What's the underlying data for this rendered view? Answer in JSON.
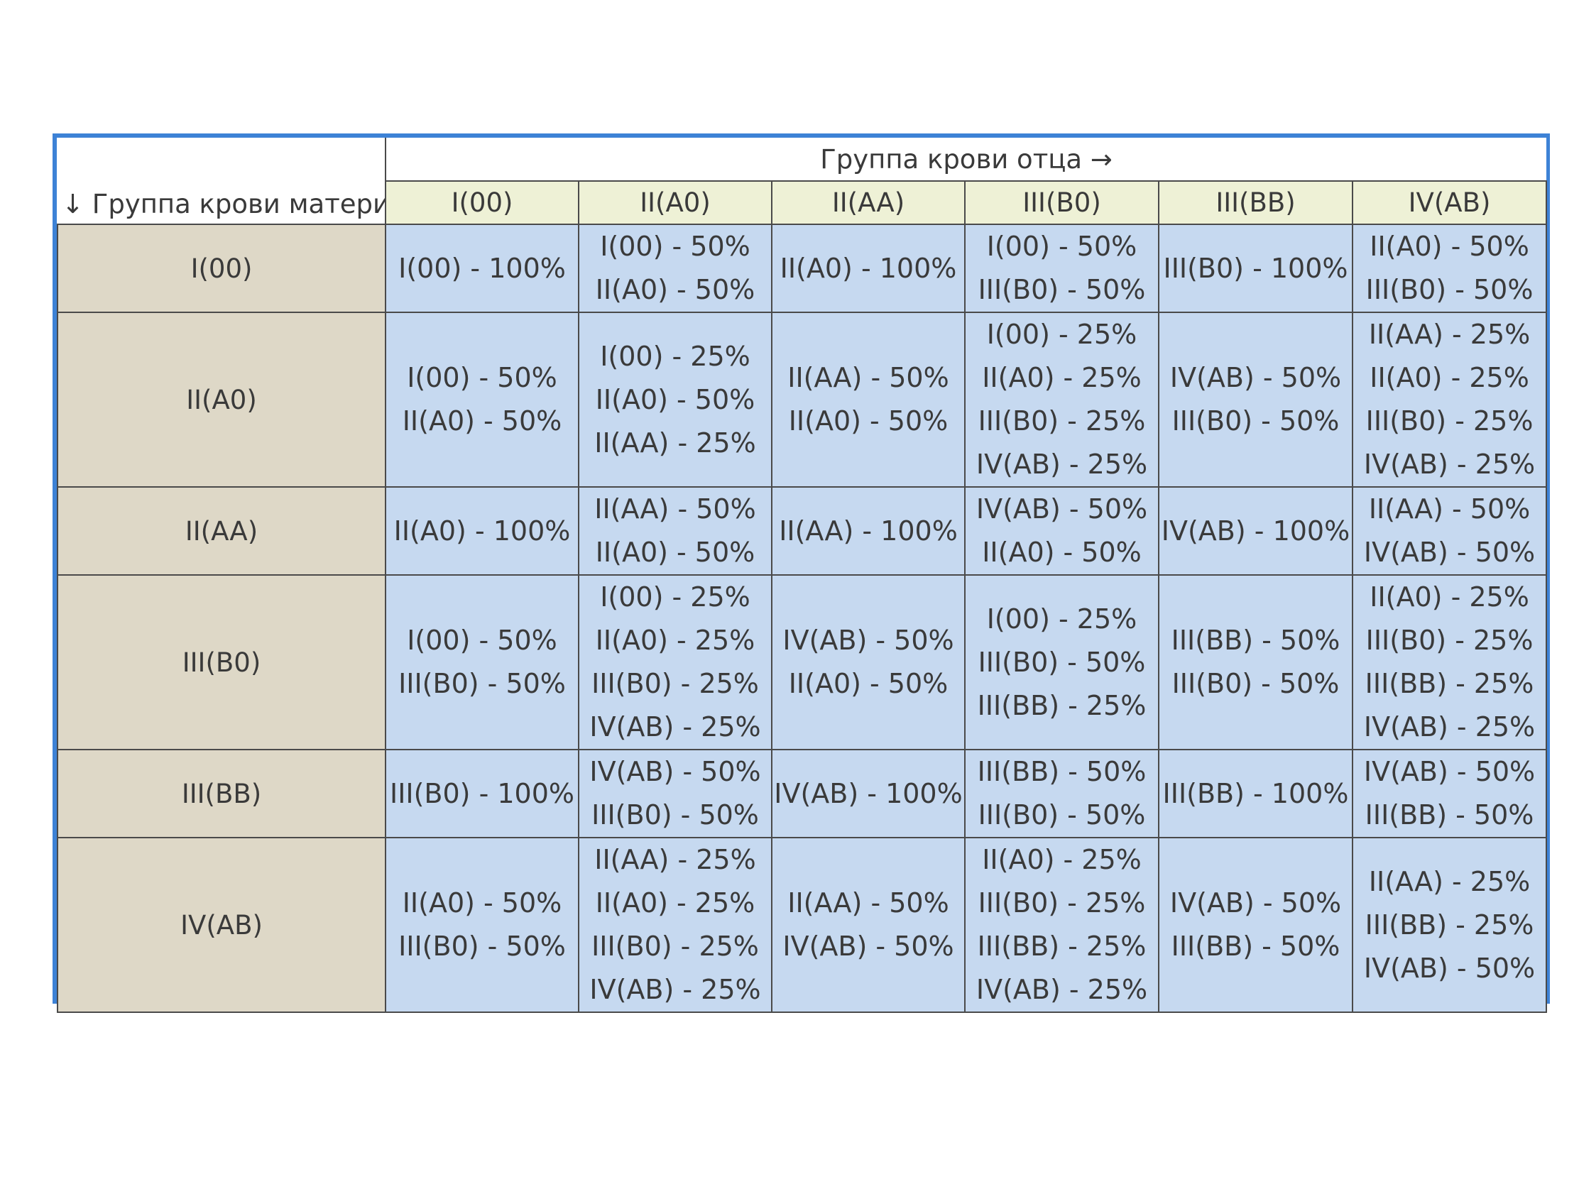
{
  "table": {
    "father_title": "Группа крови отца →",
    "mother_title": "↓ Группа крови матери",
    "columns": [
      "I(00)",
      "II(A0)",
      "II(AA)",
      "III(B0)",
      "III(BB)",
      "IV(AB)"
    ],
    "rows": [
      {
        "label": "I(00)",
        "cells": [
          [
            "I(00) - 100%"
          ],
          [
            "I(00) - 50%",
            "II(A0) - 50%"
          ],
          [
            "II(A0) - 100%"
          ],
          [
            "I(00) - 50%",
            "III(B0) - 50%"
          ],
          [
            "III(B0) - 100%"
          ],
          [
            "II(A0) - 50%",
            "III(B0) - 50%"
          ]
        ]
      },
      {
        "label": "II(A0)",
        "cells": [
          [
            "I(00) - 50%",
            "II(A0) - 50%"
          ],
          [
            "I(00) - 25%",
            "II(A0) - 50%",
            "II(AA) - 25%"
          ],
          [
            "II(AA) - 50%",
            "II(A0) - 50%"
          ],
          [
            "I(00) - 25%",
            "II(A0) - 25%",
            "III(B0) - 25%",
            "IV(AB) - 25%"
          ],
          [
            "IV(AB) - 50%",
            "III(B0) - 50%"
          ],
          [
            "II(AA) - 25%",
            "II(A0) - 25%",
            "III(B0) - 25%",
            "IV(AB) - 25%"
          ]
        ]
      },
      {
        "label": "II(AA)",
        "cells": [
          [
            "II(A0) - 100%"
          ],
          [
            "II(AA) - 50%",
            "II(A0) - 50%"
          ],
          [
            "II(AA) - 100%"
          ],
          [
            "IV(AB) - 50%",
            "II(A0) - 50%"
          ],
          [
            "IV(AB) - 100%"
          ],
          [
            "II(AA) - 50%",
            "IV(AB) - 50%"
          ]
        ]
      },
      {
        "label": "III(B0)",
        "cells": [
          [
            "I(00) - 50%",
            "III(B0) - 50%"
          ],
          [
            "I(00) - 25%",
            "II(A0) - 25%",
            "III(B0) - 25%",
            "IV(AB) - 25%"
          ],
          [
            "IV(AB) - 50%",
            "II(A0) - 50%"
          ],
          [
            "I(00) - 25%",
            "III(B0) - 50%",
            "III(BB) - 25%"
          ],
          [
            "III(BB) - 50%",
            "III(B0) - 50%"
          ],
          [
            "II(A0) - 25%",
            "III(B0) - 25%",
            "III(BB) - 25%",
            "IV(AB) - 25%"
          ]
        ]
      },
      {
        "label": "III(BB)",
        "cells": [
          [
            "III(B0) - 100%"
          ],
          [
            "IV(AB) - 50%",
            "III(B0) - 50%"
          ],
          [
            "IV(AB) - 100%"
          ],
          [
            "III(BB) - 50%",
            "III(B0) - 50%"
          ],
          [
            "III(BB) - 100%"
          ],
          [
            "IV(AB) - 50%",
            "III(BB) - 50%"
          ]
        ]
      },
      {
        "label": "IV(AB)",
        "cells": [
          [
            "II(A0) - 50%",
            "III(B0) - 50%"
          ],
          [
            "II(AA) - 25%",
            "II(A0) - 25%",
            "III(B0) - 25%",
            "IV(AB) - 25%"
          ],
          [
            "II(AA) - 50%",
            "IV(AB) - 50%"
          ],
          [
            "II(A0) - 25%",
            "III(B0) - 25%",
            "III(BB) - 25%",
            "IV(AB) - 25%"
          ],
          [
            "IV(AB) - 50%",
            "III(BB) - 50%"
          ],
          [
            "II(AA) - 25%",
            "III(BB) - 25%",
            "IV(AB) - 50%"
          ]
        ]
      }
    ]
  }
}
